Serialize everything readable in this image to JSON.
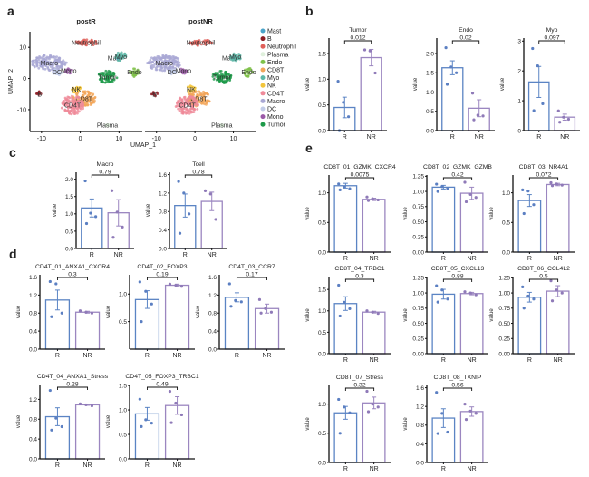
{
  "colors": {
    "R": "#5b84c4",
    "NR": "#9b86c0",
    "R_dot": "#5b7fc2",
    "NR_dot": "#8f7ab8",
    "axis": "#111111"
  },
  "panel_letters": {
    "a": "a",
    "b": "b",
    "c": "c",
    "d": "d",
    "e": "e"
  },
  "chart_data": [
    {
      "id": "a",
      "type": "scatter",
      "subtype": "umap",
      "xlabel": "UMAP_1",
      "ylabel": "UMAP_2",
      "panels": [
        {
          "title": "postR"
        },
        {
          "title": "postNR"
        }
      ],
      "xlim": [
        -13,
        16
      ],
      "ylim": [
        -17,
        15
      ],
      "xticks": [
        -10,
        0,
        10
      ],
      "yticks": [
        10,
        0,
        -10
      ],
      "legend": [
        {
          "name": "Mast",
          "color": "#4aa3c9"
        },
        {
          "name": "B",
          "color": "#8c1d24"
        },
        {
          "name": "Neutrophil",
          "color": "#e0605a"
        },
        {
          "name": "Plasma",
          "color": "#dff0dc"
        },
        {
          "name": "Endo",
          "color": "#7fc24a"
        },
        {
          "name": "CD8T",
          "color": "#f2a65a"
        },
        {
          "name": "Myo",
          "color": "#5fb8a8"
        },
        {
          "name": "NK",
          "color": "#f2c53c"
        },
        {
          "name": "CD4T",
          "color": "#ef8a99"
        },
        {
          "name": "Macro",
          "color": "#a9a8d4"
        },
        {
          "name": "DC",
          "color": "#c2cce8"
        },
        {
          "name": "Mono",
          "color": "#9b5aa8"
        },
        {
          "name": "Tumor",
          "color": "#1e9a4a"
        }
      ],
      "clusters": [
        {
          "name": "Neutrophil",
          "x": 1.5,
          "y": 11.5,
          "label": "Neutrophil",
          "rx": 3,
          "ry": 1
        },
        {
          "name": "Mast",
          "x": 10,
          "y": 6.5,
          "label": "Mast",
          "rx": 0.6,
          "ry": 0.6,
          "label_dx": -5
        },
        {
          "name": "Myo",
          "x": 10.5,
          "y": 7,
          "label": "Myo",
          "rx": 1.5,
          "ry": 1.5
        },
        {
          "name": "Macro",
          "x": -8,
          "y": 5,
          "label": "Macro",
          "rx": 4.5,
          "ry": 2.5
        },
        {
          "name": "DC",
          "x": -6,
          "y": 2,
          "label": "DC",
          "rx": 1.2,
          "ry": 1
        },
        {
          "name": "Mono",
          "x": -3,
          "y": 2.5,
          "label": "Mono",
          "rx": 1,
          "ry": 1
        },
        {
          "name": "Tumor",
          "x": 7,
          "y": 0.5,
          "label": "Tumor",
          "rx": 2.5,
          "ry": 2
        },
        {
          "name": "Endo",
          "x": 14,
          "y": 2,
          "label": "Endo",
          "rx": 1.2,
          "ry": 1.5
        },
        {
          "name": "B",
          "x": -10.5,
          "y": -5,
          "label": "B",
          "rx": 0.8,
          "ry": 0.8
        },
        {
          "name": "NK",
          "x": -1,
          "y": -3.5,
          "label": "NK",
          "rx": 1.2,
          "ry": 1.2
        },
        {
          "name": "CD8T",
          "x": 1,
          "y": -6.5,
          "label": "CD8T",
          "rx": 3,
          "ry": 2.5
        },
        {
          "name": "CD4T",
          "x": -2,
          "y": -8.5,
          "label": "CD4T",
          "rx": 3,
          "ry": 3
        },
        {
          "name": "Plasma",
          "x": 7,
          "y": -15,
          "label": "Plasma",
          "rx": 0.5,
          "ry": 0.3
        }
      ]
    },
    {
      "id": "b",
      "type": "bar",
      "categories": [
        "R",
        "NR"
      ],
      "subplots": [
        {
          "title": "Tumor",
          "ylabel": "value",
          "ylim": [
            0,
            1.8
          ],
          "yticks": [
            0.0,
            0.5,
            1.0,
            1.5
          ],
          "tickfmt": 1,
          "means": [
            0.45,
            1.42
          ],
          "sem": [
            0.2,
            0.16
          ],
          "pvalue": "0.012",
          "points": [
            [
              0.96,
              0.55,
              0.27,
              0.0
            ],
            [
              1.57,
              1.55,
              1.12
            ]
          ]
        },
        {
          "title": "Endo",
          "ylabel": "value",
          "ylim": [
            0,
            2.4
          ],
          "yticks": [
            0.0,
            0.5,
            1.0,
            1.5,
            2.0
          ],
          "tickfmt": 1,
          "means": [
            1.63,
            0.58
          ],
          "sem": [
            0.18,
            0.22
          ],
          "pvalue": "0.02",
          "points": [
            [
              2.15,
              1.65,
              1.5,
              1.2
            ],
            [
              0.97,
              0.4,
              0.38,
              0.28
            ]
          ]
        },
        {
          "title": "Myo",
          "ylabel": "value",
          "ylim": [
            0,
            3.1
          ],
          "yticks": [
            0,
            1,
            2,
            3
          ],
          "tickfmt": 0,
          "means": [
            1.63,
            0.45
          ],
          "sem": [
            0.52,
            0.1
          ],
          "pvalue": "0.097",
          "points": [
            [
              2.75,
              2.17,
              0.9,
              0.67
            ],
            [
              0.66,
              0.45,
              0.38,
              0.28
            ]
          ]
        }
      ]
    },
    {
      "id": "c",
      "type": "bar",
      "categories": [
        "R",
        "NR"
      ],
      "subplots": [
        {
          "title": "Macro",
          "ylabel": "value",
          "ylim": [
            0,
            2.2
          ],
          "yticks": [
            0.0,
            0.5,
            1.0,
            1.5,
            2.0
          ],
          "tickfmt": 1,
          "means": [
            1.17,
            1.03
          ],
          "sem": [
            0.26,
            0.38
          ],
          "pvalue": "0.79",
          "points": [
            [
              1.95,
              1.02,
              0.92,
              0.72
            ],
            [
              1.67,
              1.05,
              0.62,
              0.32
            ]
          ]
        },
        {
          "title": "Tcell",
          "ylabel": "value",
          "ylim": [
            0,
            1.65
          ],
          "yticks": [
            0.0,
            0.4,
            0.8,
            1.2,
            1.6
          ],
          "tickfmt": 1,
          "means": [
            0.93,
            1.02
          ],
          "sem": [
            0.25,
            0.2
          ],
          "pvalue": "0.78",
          "points": [
            [
              1.45,
              1.2,
              0.75,
              0.33
            ],
            [
              1.25,
              1.18,
              0.63
            ]
          ]
        }
      ]
    },
    {
      "id": "d",
      "type": "bar",
      "categories": [
        "R",
        "NR"
      ],
      "subplots": [
        {
          "title": "CD4T_01_ANXA1_CXCR4",
          "ylabel": "value",
          "ylim": [
            0,
            1.65
          ],
          "yticks": [
            0.0,
            0.4,
            0.8,
            1.2,
            1.6
          ],
          "tickfmt": 1,
          "means": [
            1.09,
            0.82
          ],
          "sem": [
            0.22,
            0.02
          ],
          "pvalue": "0.3",
          "points": [
            [
              1.5,
              1.45,
              0.8,
              0.72
            ],
            [
              0.85,
              0.82,
              0.8
            ]
          ]
        },
        {
          "title": "CD4T_02_FOXP3",
          "ylabel": "value",
          "ylim": [
            0,
            1.35
          ],
          "yticks": [
            0.5,
            1.0
          ],
          "tickfmt": 1,
          "means": [
            0.9,
            1.16
          ],
          "sem": [
            0.16,
            0.02
          ],
          "pvalue": "0.19",
          "points": [
            [
              1.22,
              1.05,
              0.82,
              0.5
            ],
            [
              1.18,
              1.16,
              1.14
            ]
          ]
        },
        {
          "title": "CD4T_03_CCR7",
          "ylabel": "value",
          "ylim": [
            0,
            1.65
          ],
          "yticks": [
            0.0,
            0.4,
            0.8,
            1.2,
            1.6
          ],
          "tickfmt": 1,
          "means": [
            1.15,
            0.9
          ],
          "sem": [
            0.1,
            0.1
          ],
          "pvalue": "0.17",
          "points": [
            [
              1.45,
              1.08,
              1.05,
              0.95
            ],
            [
              1.1,
              0.9,
              0.82,
              0.8
            ]
          ]
        },
        {
          "title": "CD4T_04_ANXA1_Stress",
          "ylabel": "value",
          "ylim": [
            0,
            1.5
          ],
          "yticks": [
            0.0,
            0.4,
            0.8,
            1.2
          ],
          "tickfmt": 1,
          "means": [
            0.85,
            1.09
          ],
          "sem": [
            0.18,
            0.01
          ],
          "pvalue": "0.28",
          "points": [
            [
              1.38,
              0.82,
              0.65,
              0.58
            ],
            [
              1.11,
              1.09,
              1.07
            ]
          ]
        },
        {
          "title": "CD4T_05_FOXP3_TRBC1",
          "ylabel": "value",
          "ylim": [
            0,
            1.52
          ],
          "yticks": [
            0.0,
            0.5,
            1.0,
            1.5
          ],
          "tickfmt": 1,
          "means": [
            0.92,
            1.09
          ],
          "sem": [
            0.13,
            0.18
          ],
          "pvalue": "0.49",
          "points": [
            [
              1.22,
              0.8,
              0.73,
              0.66
            ],
            [
              1.38,
              1.14,
              0.9,
              0.74
            ]
          ]
        }
      ]
    },
    {
      "id": "e",
      "type": "bar",
      "categories": [
        "R",
        "NR"
      ],
      "subplots": [
        {
          "title": "CD8T_01_GZMK_CXCR4",
          "ylabel": "value",
          "ylim": [
            0,
            1.3
          ],
          "yticks": [
            0.0,
            0.5,
            1.0
          ],
          "tickfmt": 1,
          "means": [
            1.12,
            0.89
          ],
          "sem": [
            0.04,
            0.02
          ],
          "pvalue": "0.0075",
          "points": [
            [
              1.15,
              1.1,
              1.07,
              1.05
            ],
            [
              0.93,
              0.9,
              0.88,
              0.87
            ]
          ]
        },
        {
          "title": "CD8T_02_GZMK_GZMB",
          "ylabel": "value",
          "ylim": [
            0,
            1.27
          ],
          "yticks": [
            0.0,
            0.25,
            0.5,
            0.75,
            1.0,
            1.25
          ],
          "tickfmt": 2,
          "means": [
            1.07,
            0.97
          ],
          "sem": [
            0.03,
            0.1
          ],
          "pvalue": "0.42",
          "points": [
            [
              1.12,
              1.08,
              1.05,
              1.0
            ],
            [
              1.15,
              0.95,
              0.9,
              0.83
            ]
          ]
        },
        {
          "title": "CD8T_03_NR4A1",
          "ylabel": "value",
          "ylim": [
            0,
            1.3
          ],
          "yticks": [
            0.0,
            0.5,
            1.0
          ],
          "tickfmt": 1,
          "means": [
            0.87,
            1.14
          ],
          "sem": [
            0.1,
            0.02
          ],
          "pvalue": "0.072",
          "points": [
            [
              1.05,
              1.03,
              0.8,
              0.65
            ],
            [
              1.17,
              1.15,
              1.13,
              1.12
            ]
          ]
        },
        {
          "title": "CD8T_04_TRBC1",
          "ylabel": "value",
          "ylim": [
            0,
            1.8
          ],
          "yticks": [
            0.0,
            0.5,
            1.0,
            1.5
          ],
          "tickfmt": 1,
          "means": [
            1.17,
            0.97
          ],
          "sem": [
            0.16,
            0.02
          ],
          "pvalue": "0.3",
          "points": [
            [
              1.6,
              1.2,
              1.05,
              0.88
            ],
            [
              1.0,
              0.97,
              0.94
            ]
          ]
        },
        {
          "title": "CD8T_05_CXCL13",
          "ylabel": "value",
          "ylim": [
            0,
            1.27
          ],
          "yticks": [
            0.0,
            0.25,
            0.5,
            0.75,
            1.0,
            1.25
          ],
          "tickfmt": 2,
          "means": [
            0.98,
            0.99
          ],
          "sem": [
            0.08,
            0.02
          ],
          "pvalue": "0.88",
          "points": [
            [
              1.12,
              1.05,
              0.9,
              0.85
            ],
            [
              1.02,
              1.0,
              0.97
            ]
          ]
        },
        {
          "title": "CD8T_06_CCL4L2",
          "ylabel": "value",
          "ylim": [
            0,
            1.27
          ],
          "yticks": [
            0.0,
            0.25,
            0.5,
            0.75,
            1.0,
            1.25
          ],
          "tickfmt": 2,
          "means": [
            0.93,
            1.03
          ],
          "sem": [
            0.08,
            0.09
          ],
          "pvalue": "0.5",
          "points": [
            [
              1.1,
              0.95,
              0.9,
              0.75
            ],
            [
              1.2,
              1.05,
              1.0,
              0.87
            ]
          ]
        },
        {
          "title": "CD8T_07_Stress",
          "ylabel": "value",
          "ylim": [
            0,
            1.32
          ],
          "yticks": [
            0.0,
            0.5,
            1.0
          ],
          "tickfmt": 1,
          "means": [
            0.85,
            1.02
          ],
          "sem": [
            0.11,
            0.1
          ],
          "pvalue": "0.32",
          "points": [
            [
              1.08,
              0.95,
              0.85,
              0.5
            ],
            [
              1.22,
              1.0,
              0.95,
              0.87
            ]
          ]
        },
        {
          "title": "CD8T_08_TXNIP",
          "ylabel": "value",
          "ylim": [
            0,
            1.65
          ],
          "yticks": [
            0.0,
            0.4,
            0.8,
            1.2,
            1.6
          ],
          "tickfmt": 1,
          "means": [
            0.95,
            1.09
          ],
          "sem": [
            0.2,
            0.1
          ],
          "pvalue": "0.56",
          "points": [
            [
              1.5,
              1.05,
              0.65,
              0.62
            ],
            [
              1.25,
              1.1,
              1.05,
              0.92
            ]
          ]
        }
      ]
    }
  ]
}
